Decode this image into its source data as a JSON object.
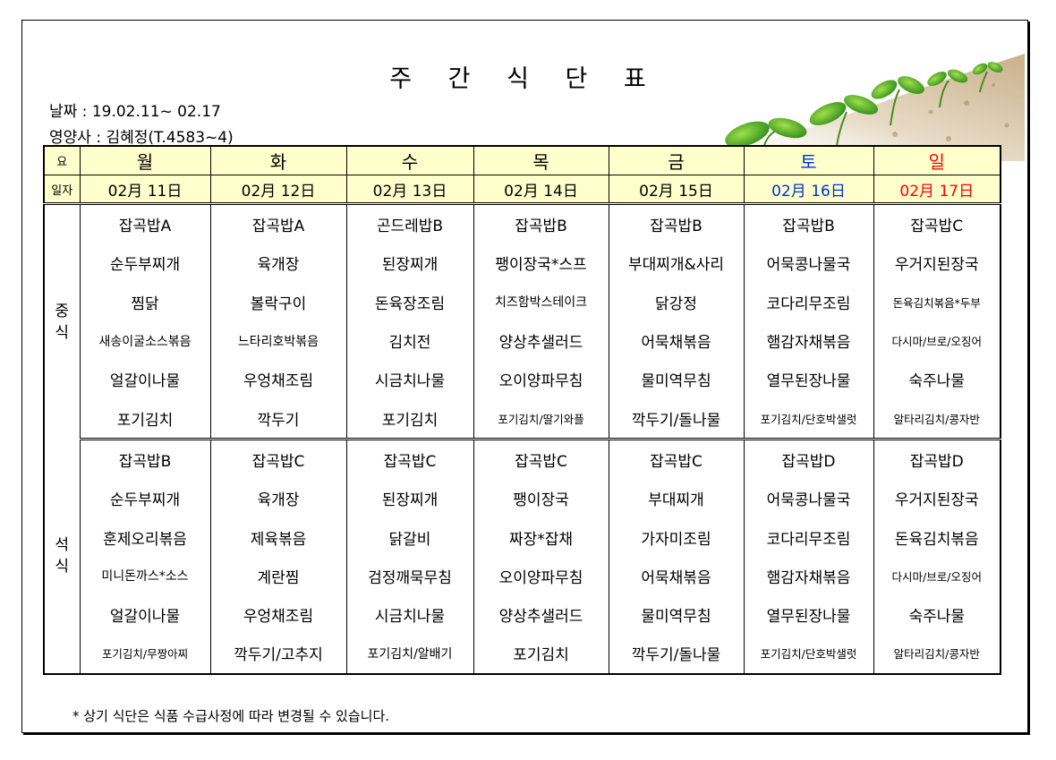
{
  "header": {
    "title": "주 간 식 단 표",
    "date_line": "날짜 : 19.02.11~ 02.17",
    "nutritionist_line": "영양사 : 김혜정(T.4583~4)"
  },
  "table": {
    "day_label": "요",
    "date_label": "일자",
    "days": [
      "월",
      "화",
      "수",
      "목",
      "금",
      "토",
      "일"
    ],
    "dates": [
      "02月 11日",
      "02月 12日",
      "02月 13日",
      "02月 14日",
      "02月 15日",
      "02月 16日",
      "02月 17日"
    ],
    "colors": {
      "saturday": "#0033cc",
      "sunday": "#ff0000",
      "header_bg": "#ffffcc"
    },
    "lunch": {
      "label": "중식",
      "rows": [
        [
          "잡곡밥A",
          "잡곡밥A",
          "곤드레밥B",
          "잡곡밥B",
          "잡곡밥B",
          "잡곡밥B",
          "잡곡밥C"
        ],
        [
          "순두부찌개",
          "육개장",
          "된장찌개",
          "팽이장국*스프",
          "부대찌개&사리",
          "어묵콩나물국",
          "우거지된장국"
        ],
        [
          "찜닭",
          "볼락구이",
          "돈육장조림",
          "치즈함박스테이크",
          "닭강정",
          "코다리무조림",
          "돈육김치볶음*두부"
        ],
        [
          "새송이굴소스볶음",
          "느타리호박볶음",
          "김치전",
          "양상추샐러드",
          "어묵채볶음",
          "햄감자채볶음",
          "다시마/브로/오징어"
        ],
        [
          "얼갈이나물",
          "우엉채조림",
          "시금치나물",
          "오이양파무침",
          "물미역무침",
          "열무된장나물",
          "숙주나물"
        ],
        [
          "포기김치",
          "깍두기",
          "포기김치",
          "포기김치/딸기와플",
          "깍두기/돌나물",
          "포기김치/단호박샐럿",
          "알타리김치/콩자반"
        ]
      ]
    },
    "dinner": {
      "label": "석식",
      "rows": [
        [
          "잡곡밥B",
          "잡곡밥C",
          "잡곡밥C",
          "잡곡밥C",
          "잡곡밥C",
          "잡곡밥D",
          "잡곡밥D"
        ],
        [
          "순두부찌개",
          "육개장",
          "된장찌개",
          "팽이장국",
          "부대찌개",
          "어묵콩나물국",
          "우거지된장국"
        ],
        [
          "훈제오리볶음",
          "제육볶음",
          "닭갈비",
          "짜장*잡채",
          "가자미조림",
          "코다리무조림",
          "돈육김치볶음"
        ],
        [
          "미니돈까스*소스",
          "계란찜",
          "검정깨묵무침",
          "오이양파무침",
          "어묵채볶음",
          "햄감자채볶음",
          "다시마/브로/오징어"
        ],
        [
          "얼갈이나물",
          "우엉채조림",
          "시금치나물",
          "양상추샐러드",
          "물미역무침",
          "열무된장나물",
          "숙주나물"
        ],
        [
          "포기김치/무짱아찌",
          "깍두기/고추지",
          "포기김치/알배기",
          "포기김치",
          "깍두기/돌나물",
          "포기김치/단호박샐럿",
          "알타리김치/콩자반"
        ]
      ]
    }
  },
  "footnote": "* 상기 식단은 식품 수급사정에 따라 변경될 수 있습니다."
}
